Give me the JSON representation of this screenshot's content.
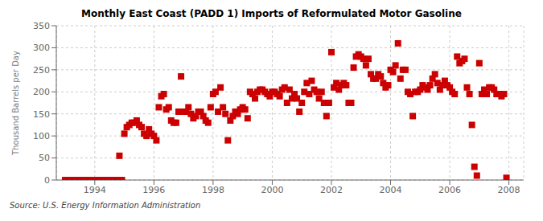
{
  "chart_data": {
    "type": "scatter",
    "title": "Monthly East Coast (PADD 1) Imports of Reformulated Motor Gasoline",
    "ylabel": "Thousand Barrels per Day",
    "source": "Source: U.S. Energy Information Administration",
    "color": "#cc0000",
    "marker": "square",
    "grid": true,
    "xlim": [
      1992.7,
      2008.5
    ],
    "xticks": [
      1994,
      1996,
      1998,
      2000,
      2002,
      2004,
      2006,
      2008
    ],
    "ylim": [
      0,
      350
    ],
    "yticks": [
      0,
      50,
      100,
      150,
      200,
      250,
      300,
      350
    ],
    "x": [
      1993.0,
      1993.083,
      1993.167,
      1993.25,
      1993.333,
      1993.417,
      1993.5,
      1993.583,
      1993.667,
      1993.75,
      1993.833,
      1993.917,
      1994.0,
      1994.083,
      1994.167,
      1994.25,
      1994.333,
      1994.417,
      1994.5,
      1994.583,
      1994.667,
      1994.75,
      1994.833,
      1994.917,
      1995.0,
      1995.083,
      1995.167,
      1995.25,
      1995.333,
      1995.417,
      1995.5,
      1995.583,
      1995.667,
      1995.75,
      1995.833,
      1995.917,
      1996.0,
      1996.083,
      1996.167,
      1996.25,
      1996.333,
      1996.417,
      1996.5,
      1996.583,
      1996.667,
      1996.75,
      1996.833,
      1996.917,
      1997.0,
      1997.083,
      1997.167,
      1997.25,
      1997.333,
      1997.417,
      1997.5,
      1997.583,
      1997.667,
      1997.75,
      1997.833,
      1997.917,
      1998.0,
      1998.083,
      1998.167,
      1998.25,
      1998.333,
      1998.417,
      1998.5,
      1998.583,
      1998.667,
      1998.75,
      1998.833,
      1998.917,
      1999.0,
      1999.083,
      1999.167,
      1999.25,
      1999.333,
      1999.417,
      1999.5,
      1999.583,
      1999.667,
      1999.75,
      1999.833,
      1999.917,
      2000.0,
      2000.083,
      2000.167,
      2000.25,
      2000.333,
      2000.417,
      2000.5,
      2000.583,
      2000.667,
      2000.75,
      2000.833,
      2000.917,
      2001.0,
      2001.083,
      2001.167,
      2001.25,
      2001.333,
      2001.417,
      2001.5,
      2001.583,
      2001.667,
      2001.75,
      2001.833,
      2001.917,
      2002.0,
      2002.083,
      2002.167,
      2002.25,
      2002.333,
      2002.417,
      2002.5,
      2002.583,
      2002.667,
      2002.75,
      2002.833,
      2002.917,
      2003.0,
      2003.083,
      2003.167,
      2003.25,
      2003.333,
      2003.417,
      2003.5,
      2003.583,
      2003.667,
      2003.75,
      2003.833,
      2003.917,
      2004.0,
      2004.083,
      2004.167,
      2004.25,
      2004.333,
      2004.417,
      2004.5,
      2004.583,
      2004.667,
      2004.75,
      2004.833,
      2004.917,
      2005.0,
      2005.083,
      2005.167,
      2005.25,
      2005.333,
      2005.417,
      2005.5,
      2005.583,
      2005.667,
      2005.75,
      2005.833,
      2005.917,
      2006.0,
      2006.083,
      2006.167,
      2006.25,
      2006.333,
      2006.417,
      2006.5,
      2006.583,
      2006.667,
      2006.75,
      2006.833,
      2006.917,
      2007.0,
      2007.083,
      2007.167,
      2007.25,
      2007.333,
      2007.417,
      2007.5,
      2007.583,
      2007.667,
      2007.75,
      2007.833,
      2007.917
    ],
    "values": [
      0,
      0,
      0,
      0,
      0,
      0,
      0,
      0,
      0,
      0,
      0,
      0,
      0,
      0,
      0,
      0,
      0,
      0,
      0,
      0,
      0,
      0,
      55,
      0,
      105,
      120,
      125,
      130,
      130,
      135,
      125,
      120,
      105,
      100,
      115,
      105,
      100,
      90,
      165,
      190,
      195,
      160,
      165,
      135,
      130,
      130,
      155,
      235,
      155,
      155,
      165,
      150,
      140,
      145,
      155,
      155,
      145,
      135,
      130,
      165,
      195,
      200,
      155,
      210,
      165,
      150,
      90,
      135,
      145,
      155,
      150,
      160,
      165,
      160,
      140,
      200,
      195,
      185,
      200,
      205,
      205,
      200,
      195,
      190,
      200,
      200,
      195,
      190,
      205,
      210,
      175,
      205,
      185,
      195,
      185,
      155,
      175,
      200,
      220,
      195,
      225,
      205,
      200,
      185,
      200,
      175,
      145,
      175,
      290,
      210,
      220,
      205,
      215,
      220,
      215,
      175,
      175,
      255,
      280,
      285,
      280,
      275,
      260,
      275,
      240,
      230,
      230,
      240,
      235,
      220,
      210,
      215,
      250,
      245,
      260,
      310,
      230,
      250,
      250,
      200,
      195,
      145,
      200,
      200,
      205,
      215,
      210,
      205,
      215,
      230,
      240,
      220,
      205,
      215,
      225,
      215,
      210,
      200,
      195,
      280,
      265,
      270,
      275,
      210,
      195,
      125,
      30,
      10,
      265,
      195,
      205,
      195,
      210,
      210,
      205,
      195,
      195,
      190,
      195,
      5
    ]
  }
}
